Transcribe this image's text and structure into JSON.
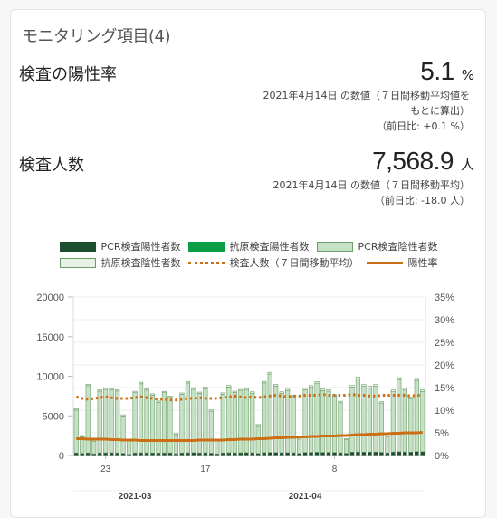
{
  "card": {
    "title": "モニタリング項目(4)"
  },
  "positivity": {
    "label": "検査の陽性率",
    "value": "5.1",
    "unit": "%",
    "note1": "2021年4月14日 の数値（７日間移動平均値を",
    "note2": "もとに算出）",
    "note3": "（前日比: +0.1 %）"
  },
  "tests": {
    "label": "検査人数",
    "value": "7,568.9",
    "unit": "人",
    "note1": "2021年4月14日 の数値（７日間移動平均）",
    "note2": "（前日比: -18.0 人）"
  },
  "legend": {
    "pcr_pos": "PCR検査陽性者数",
    "ag_pos": "抗原検査陽性者数",
    "pcr_neg": "PCR検査陰性者数",
    "ag_neg": "抗原検査陰性者数",
    "tests_ma": "検査人数（７日間移動平均）",
    "rate": "陽性率"
  },
  "colors": {
    "pcr_pos": "#1b4d2e",
    "ag_pos": "#0a9e46",
    "pcr_neg": "#c5e2c4",
    "ag_neg": "#e6f2e3",
    "line": "#cc6f14"
  },
  "chart_data": {
    "type": "bar",
    "x_tick_labels": [
      "23",
      "17",
      "8"
    ],
    "x_month_labels": [
      "2021-03",
      "2021-04"
    ],
    "y_left_ticks": [
      "0",
      "5000",
      "10000",
      "15000",
      "20000"
    ],
    "y_right_ticks": [
      "0%",
      "5%",
      "10%",
      "15%",
      "20%",
      "25%",
      "30%",
      "35%"
    ],
    "ylim_left": [
      0,
      20000
    ],
    "ylim_right": [
      0,
      35
    ],
    "stacked": true,
    "series": [
      {
        "name": "PCR検査陰性者数",
        "values": [
          5400,
          2100,
          8500,
          1600,
          7800,
          8000,
          7900,
          7800,
          4700,
          1700,
          7600,
          8700,
          7900,
          7300,
          6400,
          7600,
          7000,
          2400,
          7400,
          8800,
          8000,
          7500,
          8100,
          5300,
          1600,
          7400,
          8300,
          7600,
          7800,
          7900,
          7500,
          3500,
          8800,
          9900,
          8400,
          7500,
          7800,
          7100,
          1800,
          7900,
          8200,
          8700,
          7800,
          7700,
          7100,
          6300,
          1700,
          8200,
          9200,
          8300,
          8100,
          8300,
          6200,
          2000,
          7600,
          9100,
          7800,
          6700,
          9000,
          7600
        ]
      },
      {
        "name": "PCR検査陽性者数",
        "values": [
          300,
          250,
          300,
          200,
          300,
          320,
          330,
          310,
          260,
          150,
          310,
          330,
          320,
          300,
          290,
          300,
          310,
          220,
          300,
          330,
          340,
          310,
          330,
          280,
          200,
          310,
          330,
          320,
          330,
          340,
          330,
          250,
          340,
          360,
          350,
          330,
          340,
          330,
          250,
          360,
          380,
          390,
          370,
          380,
          360,
          330,
          270,
          400,
          420,
          400,
          410,
          410,
          380,
          300,
          420,
          450,
          430,
          400,
          460,
          450
        ]
      },
      {
        "name": "抗原検査陽性者数",
        "values": [
          20,
          15,
          20,
          15,
          20,
          20,
          20,
          20,
          18,
          10,
          20,
          22,
          20,
          20,
          18,
          20,
          20,
          15,
          20,
          22,
          22,
          20,
          22,
          18,
          12,
          20,
          22,
          20,
          22,
          22,
          22,
          15,
          22,
          24,
          23,
          22,
          22,
          22,
          15,
          24,
          25,
          26,
          24,
          25,
          24,
          22,
          18,
          26,
          28,
          26,
          27,
          27,
          25,
          20,
          28,
          30,
          28,
          26,
          30,
          30
        ]
      },
      {
        "name": "抗原検査陰性者数",
        "values": [
          180,
          150,
          180,
          130,
          170,
          180,
          180,
          170,
          150,
          100,
          170,
          190,
          180,
          170,
          160,
          170,
          170,
          130,
          170,
          190,
          190,
          170,
          190,
          150,
          110,
          170,
          190,
          180,
          180,
          190,
          180,
          140,
          190,
          210,
          200,
          180,
          190,
          180,
          140,
          200,
          210,
          220,
          200,
          210,
          200,
          190,
          150,
          220,
          230,
          220,
          220,
          220,
          200,
          160,
          220,
          240,
          230,
          210,
          240,
          230
        ]
      }
    ],
    "lines": [
      {
        "name": "検査人数（７日間移動平均）",
        "axis": "left",
        "style": "dotted",
        "values": [
          7400,
          7200,
          7100,
          7200,
          7300,
          7400,
          7300,
          7200,
          7200,
          7200,
          7300,
          7400,
          7300,
          7200,
          7100,
          7100,
          7000,
          7000,
          7100,
          7200,
          7200,
          7300,
          7200,
          7200,
          7200,
          7300,
          7400,
          7500,
          7400,
          7300,
          7400,
          7300,
          7400,
          7500,
          7600,
          7500,
          7400,
          7500,
          7500,
          7600,
          7600,
          7600,
          7700,
          7600,
          7600,
          7600,
          7600,
          7700,
          7600,
          7600,
          7500,
          7500,
          7600,
          7600,
          7600,
          7600,
          7600,
          7500,
          7600,
          7569
        ]
      },
      {
        "name": "陽性率",
        "axis": "right",
        "style": "solid",
        "values": [
          3.7,
          3.7,
          3.6,
          3.6,
          3.6,
          3.6,
          3.5,
          3.5,
          3.4,
          3.4,
          3.4,
          3.3,
          3.3,
          3.3,
          3.3,
          3.3,
          3.3,
          3.3,
          3.3,
          3.3,
          3.3,
          3.4,
          3.4,
          3.4,
          3.4,
          3.4,
          3.5,
          3.5,
          3.6,
          3.6,
          3.6,
          3.7,
          3.7,
          3.8,
          3.9,
          3.9,
          4.0,
          4.0,
          4.1,
          4.1,
          4.2,
          4.2,
          4.3,
          4.3,
          4.3,
          4.4,
          4.4,
          4.5,
          4.6,
          4.6,
          4.7,
          4.7,
          4.8,
          4.8,
          4.9,
          4.9,
          5.0,
          5.0,
          5.0,
          5.1
        ]
      }
    ]
  }
}
